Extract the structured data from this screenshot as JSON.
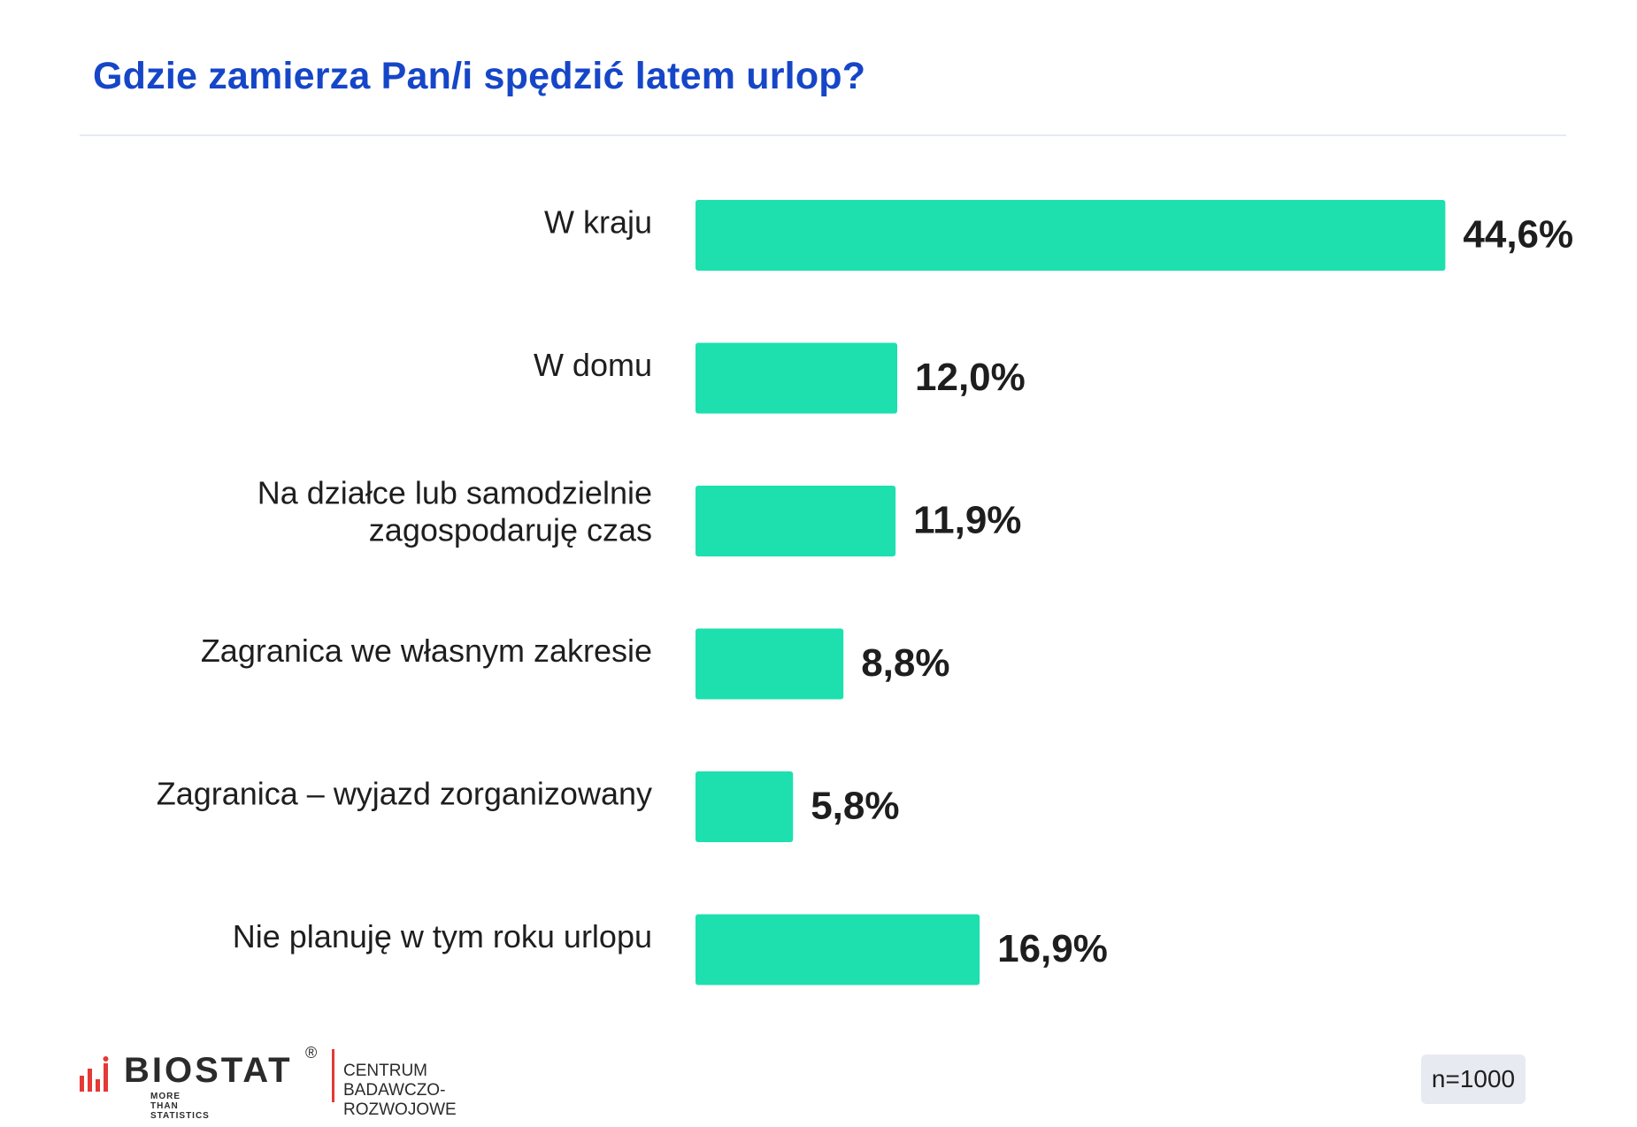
{
  "title": "Gdzie zamierza Pan/i spędzić latem urlop?",
  "colors": {
    "bar": "#1de0ae",
    "title": "#1646c8",
    "text": "#1e1e1e",
    "logo_accent": "#e53935"
  },
  "chart_data": {
    "type": "bar",
    "orientation": "horizontal",
    "title": "Gdzie zamierza Pan/i spędzić latem urlop?",
    "categories": [
      [
        "W kraju"
      ],
      [
        "W domu"
      ],
      [
        "Na działce lub samodzielnie",
        "zagospodaruję czas"
      ],
      [
        "Zagranica we własnym zakresie"
      ],
      [
        "Zagranica – wyjazd zorganizowany"
      ],
      [
        "Nie planuję w tym roku urlopu"
      ]
    ],
    "values": [
      44.6,
      12.0,
      11.9,
      8.8,
      5.8,
      16.9
    ],
    "value_labels": [
      "44,6%",
      "12,0%",
      "11,9%",
      "8,8%",
      "5,8%",
      "16,9%"
    ],
    "unit": "%",
    "grid": false,
    "legend": "none"
  },
  "footer": {
    "brand": "BIOSTAT",
    "registered": "®",
    "tagline": "MORE THAN STATISTICS",
    "division_line1": "CENTRUM",
    "division_line2": "BADAWCZO-ROZWOJOWE",
    "sample": "n=1000"
  }
}
